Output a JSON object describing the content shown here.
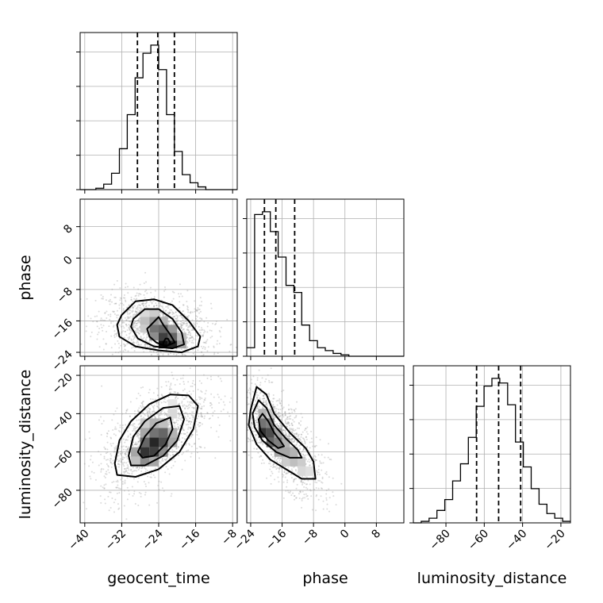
{
  "chart_data": {
    "type": "corner",
    "parameters": [
      "geocent_time",
      "phase",
      "luminosity_distance"
    ],
    "axes": {
      "geocent_time": {
        "range": [
          -41,
          -7
        ],
        "ticks": [
          -40,
          -32,
          -24,
          -16,
          -8
        ]
      },
      "phase": {
        "range": [
          -25,
          15
        ],
        "ticks": [
          -24,
          -16,
          -8,
          0,
          8
        ]
      },
      "luminosity_distance": {
        "range": [
          -97,
          -15
        ],
        "ticks": [
          -80,
          -60,
          -40,
          -20
        ]
      }
    },
    "histograms": [
      {
        "param": "geocent_time",
        "bin_edges": [
          -41,
          -39.3,
          -37.6,
          -35.9,
          -34.2,
          -32.5,
          -30.8,
          -29.1,
          -27.4,
          -25.7,
          -24,
          -22.3,
          -20.6,
          -18.9,
          -17.2,
          -15.5,
          -13.8,
          -12.1,
          -10.4,
          -8.7,
          -7
        ],
        "counts": [
          0,
          0,
          1,
          4,
          12,
          30,
          55,
          82,
          100,
          106,
          88,
          55,
          28,
          11,
          5,
          2,
          0,
          0,
          0,
          0
        ],
        "quantiles": [
          -28.6,
          -24.2,
          -20.6
        ]
      },
      {
        "param": "phase",
        "bin_edges": [
          -25,
          -23,
          -21,
          -19,
          -17,
          -15,
          -13,
          -11,
          -9,
          -7,
          -5,
          -3,
          -1,
          1,
          3,
          5,
          7,
          9,
          11,
          13,
          15
        ],
        "counts": [
          6,
          100,
          102,
          88,
          70,
          50,
          45,
          22,
          11,
          6,
          4,
          2,
          1,
          0,
          0,
          0,
          0,
          0,
          0,
          0
        ],
        "quantiles": [
          -20.5,
          -17.6,
          -12.8
        ]
      },
      {
        "param": "luminosity_distance",
        "bin_edges": [
          -97,
          -92.9,
          -88.8,
          -84.7,
          -80.6,
          -76.5,
          -72.4,
          -68.3,
          -64.2,
          -60.1,
          -56,
          -51.9,
          -47.8,
          -43.7,
          -39.6,
          -35.5,
          -31.4,
          -27.3,
          -23.2,
          -19.1,
          -15
        ],
        "counts": [
          0,
          1,
          3,
          8,
          15,
          27,
          38,
          55,
          75,
          88,
          93,
          90,
          76,
          52,
          36,
          22,
          12,
          6,
          3,
          1
        ],
        "quantiles": [
          -64,
          -52.5,
          -41
        ]
      }
    ],
    "density_2d": [
      {
        "x": "geocent_time",
        "y": "phase",
        "cells": [
          [
            -27,
            -14,
            0.15
          ],
          [
            -25,
            -14,
            0.2
          ],
          [
            -27,
            -16,
            0.25
          ],
          [
            -25,
            -16,
            0.4
          ],
          [
            -23,
            -16,
            0.3
          ],
          [
            -25,
            -18,
            0.55
          ],
          [
            -23,
            -18,
            0.6
          ],
          [
            -21,
            -18,
            0.4
          ],
          [
            -27,
            -18,
            0.2
          ],
          [
            -23,
            -20,
            0.75
          ],
          [
            -21,
            -20,
            0.6
          ],
          [
            -25,
            -20,
            0.45
          ],
          [
            -19,
            -20,
            0.25
          ],
          [
            -23,
            -22,
            0.95
          ],
          [
            -21,
            -22,
            0.85
          ],
          [
            -19,
            -22,
            0.35
          ]
        ],
        "contours": [
          [
            [
              -26.5,
              -18
            ],
            [
              -24,
              -15
            ],
            [
              -23,
              -17
            ],
            [
              -21.5,
              -19.5
            ],
            [
              -20.5,
              -21.5
            ],
            [
              -22.5,
              -22.5
            ],
            [
              -24.5,
              -21.5
            ],
            [
              -26,
              -20
            ]
          ],
          [
            [
              -29.5,
              -15.5
            ],
            [
              -27,
              -13
            ],
            [
              -24,
              -13
            ],
            [
              -21,
              -15.5
            ],
            [
              -19,
              -19
            ],
            [
              -18.5,
              -22
            ],
            [
              -21,
              -23
            ],
            [
              -25,
              -22.5
            ],
            [
              -28.5,
              -20.5
            ],
            [
              -30,
              -17.5
            ]
          ],
          [
            [
              -32,
              -14.5
            ],
            [
              -29,
              -11
            ],
            [
              -25,
              -10.5
            ],
            [
              -21,
              -12
            ],
            [
              -17.5,
              -16
            ],
            [
              -15,
              -20
            ],
            [
              -15.5,
              -22.5
            ],
            [
              -19,
              -24
            ],
            [
              -24,
              -23.5
            ],
            [
              -29,
              -22.5
            ],
            [
              -32.5,
              -20
            ],
            [
              -33,
              -17
            ]
          ],
          [
            [
              -23,
              -21.5
            ],
            [
              -22.5,
              -20.5
            ],
            [
              -22,
              -20.5
            ],
            [
              -21.5,
              -21.5
            ],
            [
              -22,
              -22.3
            ],
            [
              -23,
              -22.2
            ]
          ]
        ]
      },
      {
        "x": "geocent_time",
        "y": "luminosity_distance",
        "cells": [
          [
            -27,
            -45,
            0.2
          ],
          [
            -25,
            -45,
            0.3
          ],
          [
            -23,
            -45,
            0.25
          ],
          [
            -27,
            -50,
            0.35
          ],
          [
            -25,
            -50,
            0.55
          ],
          [
            -23,
            -50,
            0.6
          ],
          [
            -21,
            -50,
            0.3
          ],
          [
            -27,
            -55,
            0.6
          ],
          [
            -25,
            -55,
            0.85
          ],
          [
            -23,
            -55,
            0.7
          ],
          [
            -21,
            -55,
            0.35
          ],
          [
            -29,
            -60,
            0.35
          ],
          [
            -27,
            -60,
            0.8
          ],
          [
            -25,
            -60,
            0.75
          ],
          [
            -23,
            -60,
            0.45
          ],
          [
            -29,
            -65,
            0.25
          ],
          [
            -27,
            -65,
            0.45
          ],
          [
            -25,
            -65,
            0.35
          ],
          [
            -21,
            -40,
            0.15
          ],
          [
            -21,
            -35,
            0.1
          ]
        ],
        "contours": [
          [
            [
              -28.5,
              -60
            ],
            [
              -27,
              -52
            ],
            [
              -24.5,
              -45
            ],
            [
              -21.5,
              -42
            ],
            [
              -21,
              -48
            ],
            [
              -22.5,
              -56
            ],
            [
              -25,
              -62
            ],
            [
              -27.5,
              -63
            ]
          ],
          [
            [
              -30.5,
              -62
            ],
            [
              -29.5,
              -52
            ],
            [
              -27,
              -44
            ],
            [
              -23,
              -37
            ],
            [
              -19.5,
              -36
            ],
            [
              -18.5,
              -43
            ],
            [
              -20,
              -54
            ],
            [
              -23,
              -62
            ],
            [
              -27,
              -67
            ],
            [
              -30,
              -67
            ]
          ],
          [
            [
              -33.5,
              -66
            ],
            [
              -32.5,
              -54
            ],
            [
              -30,
              -44
            ],
            [
              -26,
              -35
            ],
            [
              -21.5,
              -30
            ],
            [
              -17.5,
              -30.5
            ],
            [
              -15.5,
              -36
            ],
            [
              -16.5,
              -48
            ],
            [
              -19.5,
              -60
            ],
            [
              -24,
              -69
            ],
            [
              -29,
              -73
            ],
            [
              -33,
              -72
            ]
          ]
        ]
      },
      {
        "x": "phase",
        "y": "luminosity_distance",
        "cells": [
          [
            -21,
            -40,
            0.3
          ],
          [
            -19,
            -40,
            0.2
          ],
          [
            -21,
            -45,
            0.55
          ],
          [
            -19,
            -45,
            0.5
          ],
          [
            -21,
            -50,
            0.8
          ],
          [
            -19,
            -50,
            0.7
          ],
          [
            -17,
            -50,
            0.35
          ],
          [
            -19,
            -55,
            0.6
          ],
          [
            -17,
            -55,
            0.5
          ],
          [
            -15,
            -55,
            0.3
          ],
          [
            -17,
            -60,
            0.35
          ],
          [
            -15,
            -60,
            0.35
          ],
          [
            -13,
            -60,
            0.3
          ],
          [
            -15,
            -65,
            0.2
          ],
          [
            -13,
            -65,
            0.25
          ],
          [
            -11,
            -65,
            0.2
          ],
          [
            -11,
            -70,
            0.15
          ],
          [
            -9,
            -70,
            0.12
          ]
        ],
        "contours": [
          [
            [
              -22,
              -43
            ],
            [
              -21,
              -40
            ],
            [
              -19.5,
              -44
            ],
            [
              -18,
              -50
            ],
            [
              -16.5,
              -54
            ],
            [
              -15.5,
              -57
            ],
            [
              -17,
              -58
            ],
            [
              -19.5,
              -54
            ],
            [
              -21.5,
              -49
            ]
          ],
          [
            [
              -23.5,
              -40
            ],
            [
              -22,
              -33
            ],
            [
              -20,
              -37
            ],
            [
              -18,
              -46
            ],
            [
              -15,
              -53
            ],
            [
              -12,
              -59
            ],
            [
              -11,
              -63
            ],
            [
              -14,
              -63
            ],
            [
              -17.5,
              -60
            ],
            [
              -21,
              -54
            ],
            [
              -23,
              -47
            ]
          ],
          [
            [
              -24,
              -38
            ],
            [
              -22.5,
              -26
            ],
            [
              -20,
              -30
            ],
            [
              -18,
              -40
            ],
            [
              -14,
              -50
            ],
            [
              -10,
              -58
            ],
            [
              -8,
              -65
            ],
            [
              -7.5,
              -74
            ],
            [
              -11,
              -74
            ],
            [
              -15,
              -69
            ],
            [
              -19,
              -64
            ],
            [
              -22.5,
              -56
            ],
            [
              -24.5,
              -46
            ]
          ]
        ]
      }
    ]
  }
}
